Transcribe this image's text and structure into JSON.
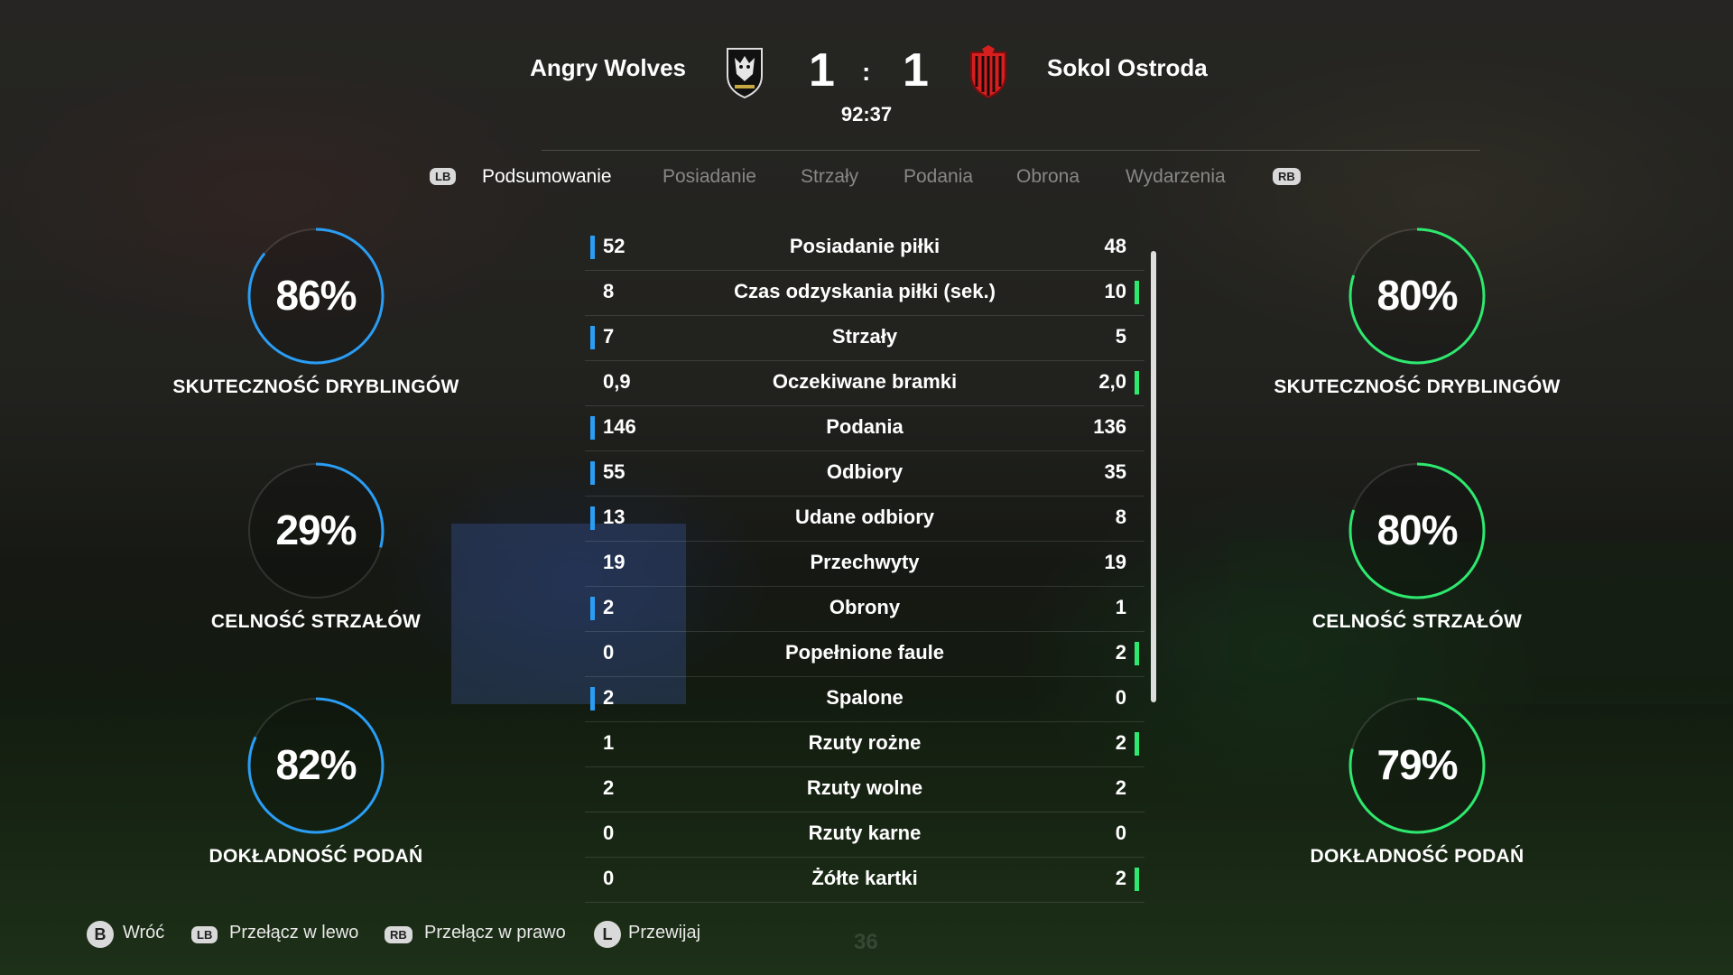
{
  "match": {
    "home_team": "Angry Wolves",
    "away_team": "Sokol Ostroda",
    "home_score": "1",
    "separator": ":",
    "away_score": "1",
    "clock": "92:37"
  },
  "tabs": {
    "left_button": "LB",
    "right_button": "RB",
    "items": [
      "Podsumowanie",
      "Posiadanie",
      "Strzały",
      "Podania",
      "Obrona",
      "Wydarzenia"
    ],
    "active": "Podsumowanie"
  },
  "colors": {
    "home_accent": "#2a9df4",
    "away_accent": "#2ee86f"
  },
  "home_rings": [
    {
      "value": "86%",
      "fraction": 0.86,
      "label": "SKUTECZNOŚĆ DRYBLINGÓW"
    },
    {
      "value": "29%",
      "fraction": 0.29,
      "label": "CELNOŚĆ STRZAŁÓW"
    },
    {
      "value": "82%",
      "fraction": 0.82,
      "label": "DOKŁADNOŚĆ PODAŃ"
    }
  ],
  "away_rings": [
    {
      "value": "80%",
      "fraction": 0.8,
      "label": "SKUTECZNOŚĆ DRYBLINGÓW"
    },
    {
      "value": "80%",
      "fraction": 0.8,
      "label": "CELNOŚĆ STRZAŁÓW"
    },
    {
      "value": "79%",
      "fraction": 0.79,
      "label": "DOKŁADNOŚĆ PODAŃ"
    }
  ],
  "stats": [
    {
      "home": "52",
      "name": "Posiadanie piłki",
      "away": "48",
      "lead": "home"
    },
    {
      "home": "8",
      "name": "Czas odzyskania piłki (sek.)",
      "away": "10",
      "lead": "away"
    },
    {
      "home": "7",
      "name": "Strzały",
      "away": "5",
      "lead": "home"
    },
    {
      "home": "0,9",
      "name": "Oczekiwane bramki",
      "away": "2,0",
      "lead": "away"
    },
    {
      "home": "146",
      "name": "Podania",
      "away": "136",
      "lead": "home"
    },
    {
      "home": "55",
      "name": "Odbiory",
      "away": "35",
      "lead": "home"
    },
    {
      "home": "13",
      "name": "Udane odbiory",
      "away": "8",
      "lead": "home"
    },
    {
      "home": "19",
      "name": "Przechwyty",
      "away": "19",
      "lead": "none"
    },
    {
      "home": "2",
      "name": "Obrony",
      "away": "1",
      "lead": "home"
    },
    {
      "home": "0",
      "name": "Popełnione faule",
      "away": "2",
      "lead": "away"
    },
    {
      "home": "2",
      "name": "Spalone",
      "away": "0",
      "lead": "home"
    },
    {
      "home": "1",
      "name": "Rzuty rożne",
      "away": "2",
      "lead": "away"
    },
    {
      "home": "2",
      "name": "Rzuty wolne",
      "away": "2",
      "lead": "none"
    },
    {
      "home": "0",
      "name": "Rzuty karne",
      "away": "0",
      "lead": "none"
    },
    {
      "home": "0",
      "name": "Żółte kartki",
      "away": "2",
      "lead": "away"
    }
  ],
  "footer": {
    "back_button": "B",
    "back_label": "Wróć",
    "lb_chip": "LB",
    "lb_label": "Przełącz w lewo",
    "rb_chip": "RB",
    "rb_label": "Przełącz w prawo",
    "scroll_button": "L",
    "scroll_label": "Przewijaj"
  },
  "background_number": "36"
}
